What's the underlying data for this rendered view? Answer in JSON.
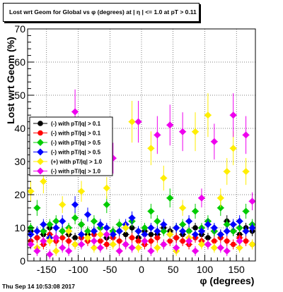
{
  "title": "Lost wrt Geom for Global vs φ (degrees) at | η | <= 1.0 at pT > 0.11",
  "datestamp": "Thu Sep 14 10:53:08 2017",
  "chart_data": {
    "type": "scatter",
    "xlabel": "φ (degrees)",
    "ylabel": "Lost wrt Geom (%)",
    "xlim": [
      -180,
      180
    ],
    "ylim": [
      0,
      70
    ],
    "x_ticks": [
      -150,
      -100,
      -50,
      0,
      50,
      100,
      150
    ],
    "y_ticks": [
      0,
      10,
      20,
      30,
      40,
      50,
      60,
      70
    ],
    "grid": true,
    "legend_position": "left",
    "series": [
      {
        "name": "(-) with pT/|q| > 0.1",
        "color": "#000000",
        "marker": "circle",
        "x": [
          -175,
          -165,
          -155,
          -145,
          -135,
          -125,
          -115,
          -105,
          -95,
          -85,
          -75,
          -65,
          -55,
          -45,
          -35,
          -25,
          -15,
          -5,
          5,
          15,
          25,
          35,
          45,
          55,
          65,
          75,
          85,
          95,
          105,
          115,
          125,
          135,
          145,
          155,
          165,
          175
        ],
        "y": [
          9,
          7,
          8,
          10,
          7,
          9,
          8,
          7,
          11,
          8,
          9,
          10,
          7,
          8,
          9,
          8,
          10,
          7,
          9,
          8,
          8,
          10,
          9,
          7,
          8,
          9,
          10,
          8,
          7,
          9,
          8,
          12,
          9,
          8,
          10,
          9
        ]
      },
      {
        "name": "(-) with pT/|q| > 0.1",
        "color": "#ff0000",
        "marker": "circle",
        "x": [
          -175,
          -165,
          -155,
          -145,
          -135,
          -125,
          -115,
          -105,
          -95,
          -85,
          -75,
          -65,
          -55,
          -45,
          -35,
          -25,
          -15,
          -5,
          5,
          15,
          25,
          35,
          45,
          55,
          65,
          75,
          85,
          95,
          105,
          115,
          125,
          135,
          145,
          155,
          165,
          175
        ],
        "y": [
          6,
          7,
          5,
          8,
          6,
          7,
          6,
          5,
          7,
          6,
          8,
          6,
          5,
          7,
          6,
          5,
          7,
          6,
          5,
          6,
          7,
          5,
          6,
          7,
          6,
          5,
          7,
          6,
          5,
          6,
          7,
          6,
          5,
          7,
          6,
          5
        ]
      },
      {
        "name": "(-) with pT/|q| > 0.5",
        "color": "#00cc00",
        "marker": "diamond",
        "x": [
          -175,
          -165,
          -155,
          -145,
          -135,
          -125,
          -115,
          -105,
          -95,
          -85,
          -75,
          -65,
          -55,
          -45,
          -35,
          -25,
          -15,
          -5,
          5,
          15,
          25,
          35,
          45,
          55,
          65,
          75,
          85,
          95,
          105,
          115,
          125,
          135,
          145,
          155,
          165,
          175
        ],
        "y": [
          10,
          16,
          9,
          11,
          12,
          9,
          10,
          13,
          11,
          9,
          12,
          10,
          17,
          9,
          11,
          10,
          12,
          9,
          10,
          15,
          12,
          9,
          19,
          10,
          11,
          9,
          15,
          10,
          12,
          9,
          16,
          11,
          9,
          10,
          15,
          11
        ]
      },
      {
        "name": "(-) with pT/|q| > 0.5",
        "color": "#0000ff",
        "marker": "diamond",
        "x": [
          -175,
          -165,
          -155,
          -145,
          -135,
          -125,
          -115,
          -105,
          -95,
          -85,
          -75,
          -65,
          -55,
          -45,
          -35,
          -25,
          -15,
          -5,
          5,
          15,
          25,
          35,
          45,
          55,
          65,
          75,
          85,
          95,
          105,
          115,
          125,
          135,
          145,
          155,
          165,
          175
        ],
        "y": [
          8,
          9,
          11,
          7,
          10,
          12,
          9,
          17,
          8,
          14,
          9,
          11,
          10,
          8,
          9,
          11,
          13,
          9,
          8,
          10,
          9,
          11,
          8,
          10,
          9,
          12,
          8,
          9,
          11,
          10,
          8,
          9,
          11,
          12,
          9,
          10
        ]
      },
      {
        "name": "(+) with pT/|q| > 1.0",
        "color": "#ffee00",
        "marker": "diamond",
        "x": [
          -175,
          -165,
          -155,
          -145,
          -135,
          -125,
          -115,
          -105,
          -95,
          -85,
          -75,
          -65,
          -55,
          -45,
          -35,
          -25,
          -15,
          -5,
          5,
          15,
          25,
          35,
          45,
          55,
          65,
          75,
          85,
          95,
          105,
          115,
          125,
          135,
          145,
          155,
          165,
          175
        ],
        "y": [
          21,
          4,
          24,
          6,
          3,
          17,
          9,
          5,
          21,
          7,
          4,
          8,
          22,
          5,
          3,
          10,
          42,
          4,
          6,
          34,
          4,
          25,
          8,
          3,
          16,
          7,
          39,
          5,
          44,
          4,
          19,
          27,
          34,
          4,
          27,
          5
        ]
      },
      {
        "name": "(-) with pT/|q| > 1.0",
        "color": "#ee00ee",
        "marker": "diamond",
        "x": [
          -175,
          -165,
          -155,
          -145,
          -135,
          -125,
          -115,
          -105,
          -95,
          -85,
          -75,
          -65,
          -55,
          -45,
          -35,
          -25,
          -15,
          -5,
          5,
          15,
          25,
          35,
          45,
          55,
          65,
          75,
          85,
          95,
          105,
          115,
          125,
          135,
          145,
          155,
          165,
          175
        ],
        "y": [
          5,
          3,
          6,
          2,
          7,
          4,
          3,
          45,
          5,
          33,
          6,
          4,
          8,
          31,
          3,
          5,
          4,
          42,
          6,
          3,
          38,
          5,
          41,
          4,
          39,
          6,
          3,
          19,
          5,
          36,
          4,
          3,
          44,
          6,
          38,
          18
        ]
      }
    ]
  }
}
